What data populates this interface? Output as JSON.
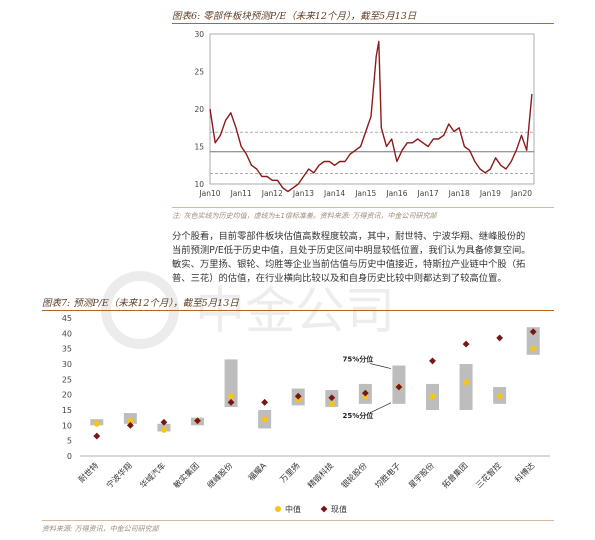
{
  "fig6": {
    "caption": "图表6: 零部件板块预测P/E（未来12个月），截至5月13日",
    "note": "注: 灰色实线为历史均值，虚线为±1倍标准差。资料来源: 万得资讯，中金公司研究部"
  },
  "paragraph_lines": [
    "分个股看，目前零部件板块估值高数程度较高，其中，耐世特、宁波华翔、继峰股份的",
    "当前预测P/E低于历史中值，且处于历史区间中明显较低位置，我们认为具备修复空间。",
    "敏实、万里扬、银轮、均胜等企业当前估值与历史中值接近，特斯拉产业链中个股（拓",
    "普、三花）的估值，在行业横向比较以及和自身历史比较中则都达到了较高位置。"
  ],
  "fig7": {
    "caption": "图表7: 预测P/E（未来12个月），截至5月13日",
    "note": "资料来源: 万得资讯，中金公司研究部",
    "annotation_75": "75%分位",
    "annotation_25": "25%分位"
  },
  "watermark_text": "中金公司",
  "colors": {
    "line": "#8b1a1a",
    "mean": "#777777",
    "band": "#aaaaaa",
    "bar": "#bdbdbd",
    "median": "#f5c518",
    "current": "#7a1515",
    "caption": "#5a3e2b"
  },
  "chart_data": [
    {
      "type": "line",
      "ylim": [
        10,
        30
      ],
      "yticks": [
        10,
        15,
        20,
        25,
        30
      ],
      "xticks": [
        "Jan10",
        "Jan11",
        "Jan12",
        "Jan13",
        "Jan14",
        "Jan15",
        "Jan16",
        "Jan17",
        "Jan18",
        "Jan19",
        "Jan20"
      ],
      "mean": 14.3,
      "upper_band": 16.9,
      "lower_band": 11.4,
      "x": [
        "2010-01",
        "2010-03",
        "2010-05",
        "2010-07",
        "2010-09",
        "2010-11",
        "2011-01",
        "2011-03",
        "2011-05",
        "2011-07",
        "2011-09",
        "2011-11",
        "2012-01",
        "2012-03",
        "2012-05",
        "2012-07",
        "2012-09",
        "2012-11",
        "2013-01",
        "2013-03",
        "2013-05",
        "2013-07",
        "2013-09",
        "2013-11",
        "2014-01",
        "2014-03",
        "2014-05",
        "2014-07",
        "2014-09",
        "2014-11",
        "2015-01",
        "2015-03",
        "2015-05",
        "2015-06",
        "2015-07",
        "2015-09",
        "2015-11",
        "2016-01",
        "2016-03",
        "2016-05",
        "2016-07",
        "2016-09",
        "2016-11",
        "2017-01",
        "2017-03",
        "2017-05",
        "2017-07",
        "2017-09",
        "2017-11",
        "2018-01",
        "2018-03",
        "2018-05",
        "2018-07",
        "2018-09",
        "2018-11",
        "2019-01",
        "2019-03",
        "2019-05",
        "2019-07",
        "2019-09",
        "2019-11",
        "2020-01",
        "2020-03",
        "2020-05"
      ],
      "values": [
        20.0,
        15.5,
        16.5,
        18.5,
        19.5,
        17.5,
        15.0,
        14.0,
        12.5,
        12.0,
        11.0,
        11.0,
        10.5,
        10.5,
        9.5,
        9.0,
        9.5,
        10.0,
        11.0,
        12.0,
        11.5,
        12.5,
        13.0,
        13.0,
        12.5,
        13.0,
        13.0,
        14.0,
        14.5,
        15.0,
        17.0,
        19.0,
        27.0,
        29.0,
        17.5,
        15.0,
        16.0,
        13.0,
        14.5,
        15.5,
        15.5,
        16.0,
        15.5,
        15.0,
        16.0,
        16.0,
        16.5,
        18.0,
        17.0,
        17.5,
        15.0,
        14.5,
        13.0,
        12.0,
        11.5,
        12.0,
        13.5,
        12.5,
        12.0,
        13.0,
        14.5,
        16.5,
        14.5,
        22.0
      ]
    },
    {
      "type": "bar",
      "ylim": [
        0,
        45
      ],
      "yticks": [
        0,
        5,
        10,
        15,
        20,
        25,
        30,
        35,
        40,
        45
      ],
      "categories": [
        "耐世特",
        "宁波华翔",
        "华域汽车",
        "敏实集团",
        "继峰股份",
        "福耀A",
        "万里扬",
        "精锻科技",
        "银轮股份",
        "均胜电子",
        "星宇股份",
        "拓普集团",
        "三花智控",
        "科博达"
      ],
      "series": [
        {
          "name": "25%分位",
          "values": [
            10.0,
            10.5,
            8.0,
            10.0,
            16.0,
            9.0,
            16.5,
            16.0,
            17.0,
            17.0,
            15.0,
            15.0,
            17.0,
            33.0
          ]
        },
        {
          "name": "75%分位",
          "values": [
            12.0,
            14.0,
            10.5,
            12.5,
            31.5,
            15.0,
            22.0,
            21.5,
            23.5,
            29.5,
            23.5,
            30.0,
            22.5,
            42.0
          ]
        },
        {
          "name": "中值",
          "values": [
            10.5,
            11.5,
            8.5,
            11.5,
            19.5,
            12.0,
            18.5,
            17.0,
            19.5,
            22.5,
            19.5,
            24.0,
            19.5,
            35.0
          ]
        },
        {
          "name": "现值",
          "values": [
            6.5,
            10.0,
            11.0,
            11.5,
            17.5,
            17.5,
            19.5,
            19.0,
            20.5,
            22.5,
            31.0,
            36.5,
            38.5,
            40.5
          ]
        }
      ],
      "legend_position": "bottom-center",
      "legend": [
        "中值",
        "现值"
      ]
    }
  ]
}
